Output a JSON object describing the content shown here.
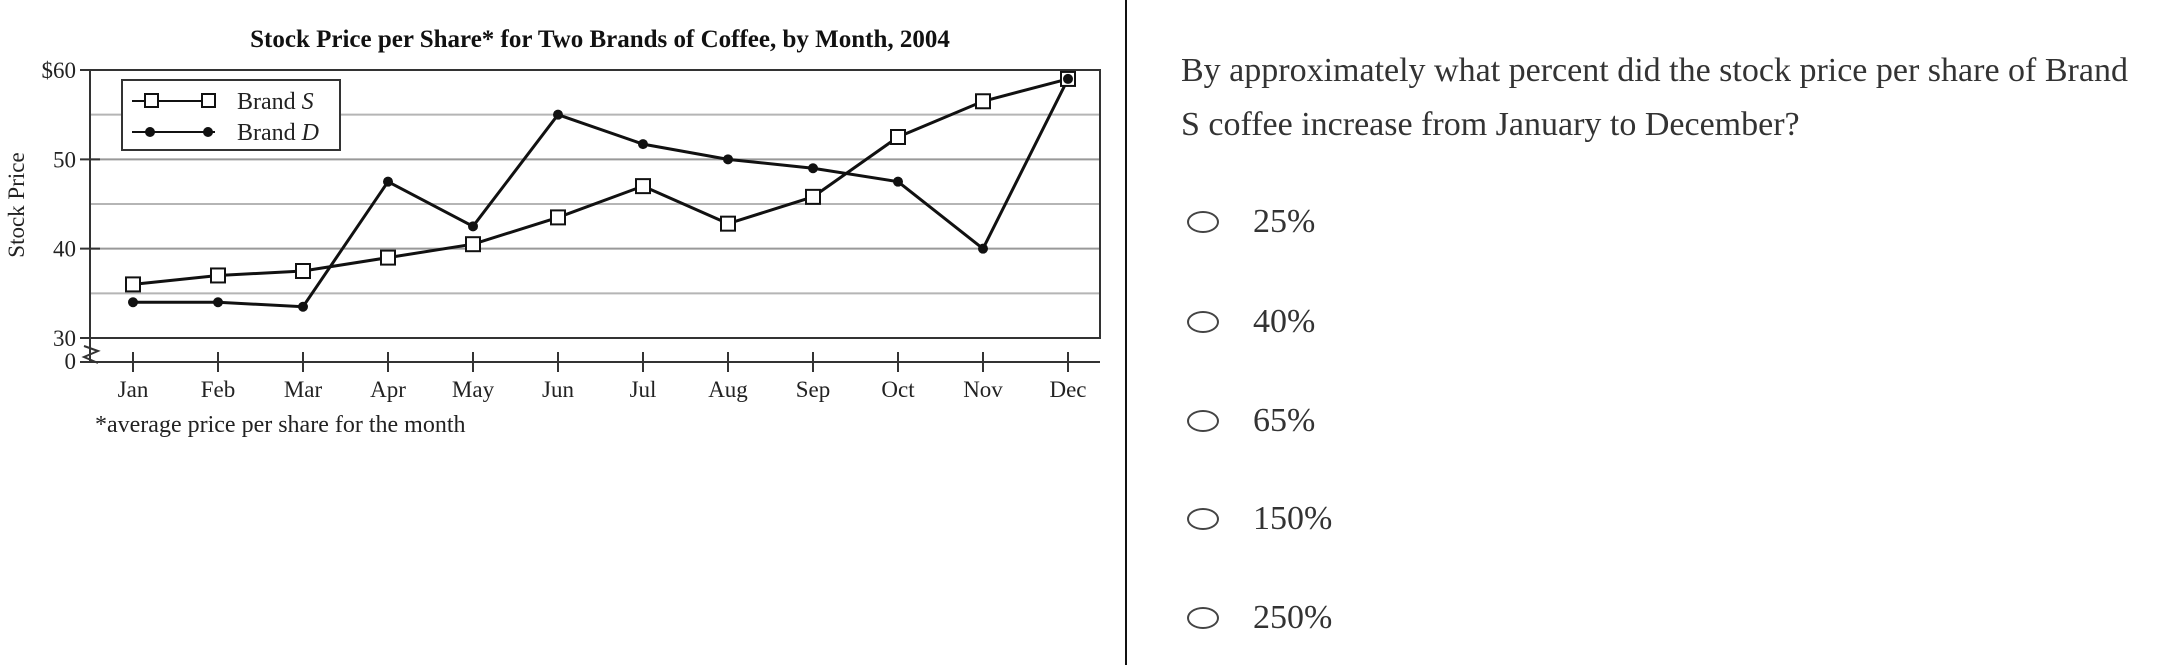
{
  "chart_data": {
    "type": "line",
    "title": "Stock Price per Share* for Two Brands of Coffee, by Month, 2004",
    "xlabel": "",
    "ylabel": "Stock Price",
    "categories": [
      "Jan",
      "Feb",
      "Mar",
      "Apr",
      "May",
      "Jun",
      "Jul",
      "Aug",
      "Sep",
      "Oct",
      "Nov",
      "Dec"
    ],
    "y_ticks": [
      {
        "value": 30,
        "label": "30"
      },
      {
        "value": 40,
        "label": "40"
      },
      {
        "value": 50,
        "label": "50"
      },
      {
        "value": 60,
        "label": "$60"
      }
    ],
    "y_zero_label": "0",
    "ylim": [
      30,
      60
    ],
    "axis_break": true,
    "grid": true,
    "series": [
      {
        "name": "Brand S",
        "marker": "open-square",
        "values": [
          36,
          37,
          37.5,
          39,
          40.5,
          43.5,
          47,
          42.8,
          45.8,
          52.5,
          56.5,
          59
        ]
      },
      {
        "name": "Brand D",
        "marker": "filled-circle",
        "values": [
          34,
          34,
          33.5,
          47.5,
          42.5,
          55,
          51.7,
          50,
          49,
          47.5,
          40,
          59
        ]
      }
    ],
    "legend": [
      {
        "prefix": "Brand ",
        "italic": "S"
      },
      {
        "prefix": "Brand ",
        "italic": "D"
      }
    ],
    "legend_position": "top-left",
    "footnote": "*average price per share for the month"
  },
  "question": {
    "text": "By approximately what percent did the stock price per share of Brand S coffee increase from January to December?",
    "options": [
      "25%",
      "40%",
      "65%",
      "150%",
      "250%"
    ]
  }
}
